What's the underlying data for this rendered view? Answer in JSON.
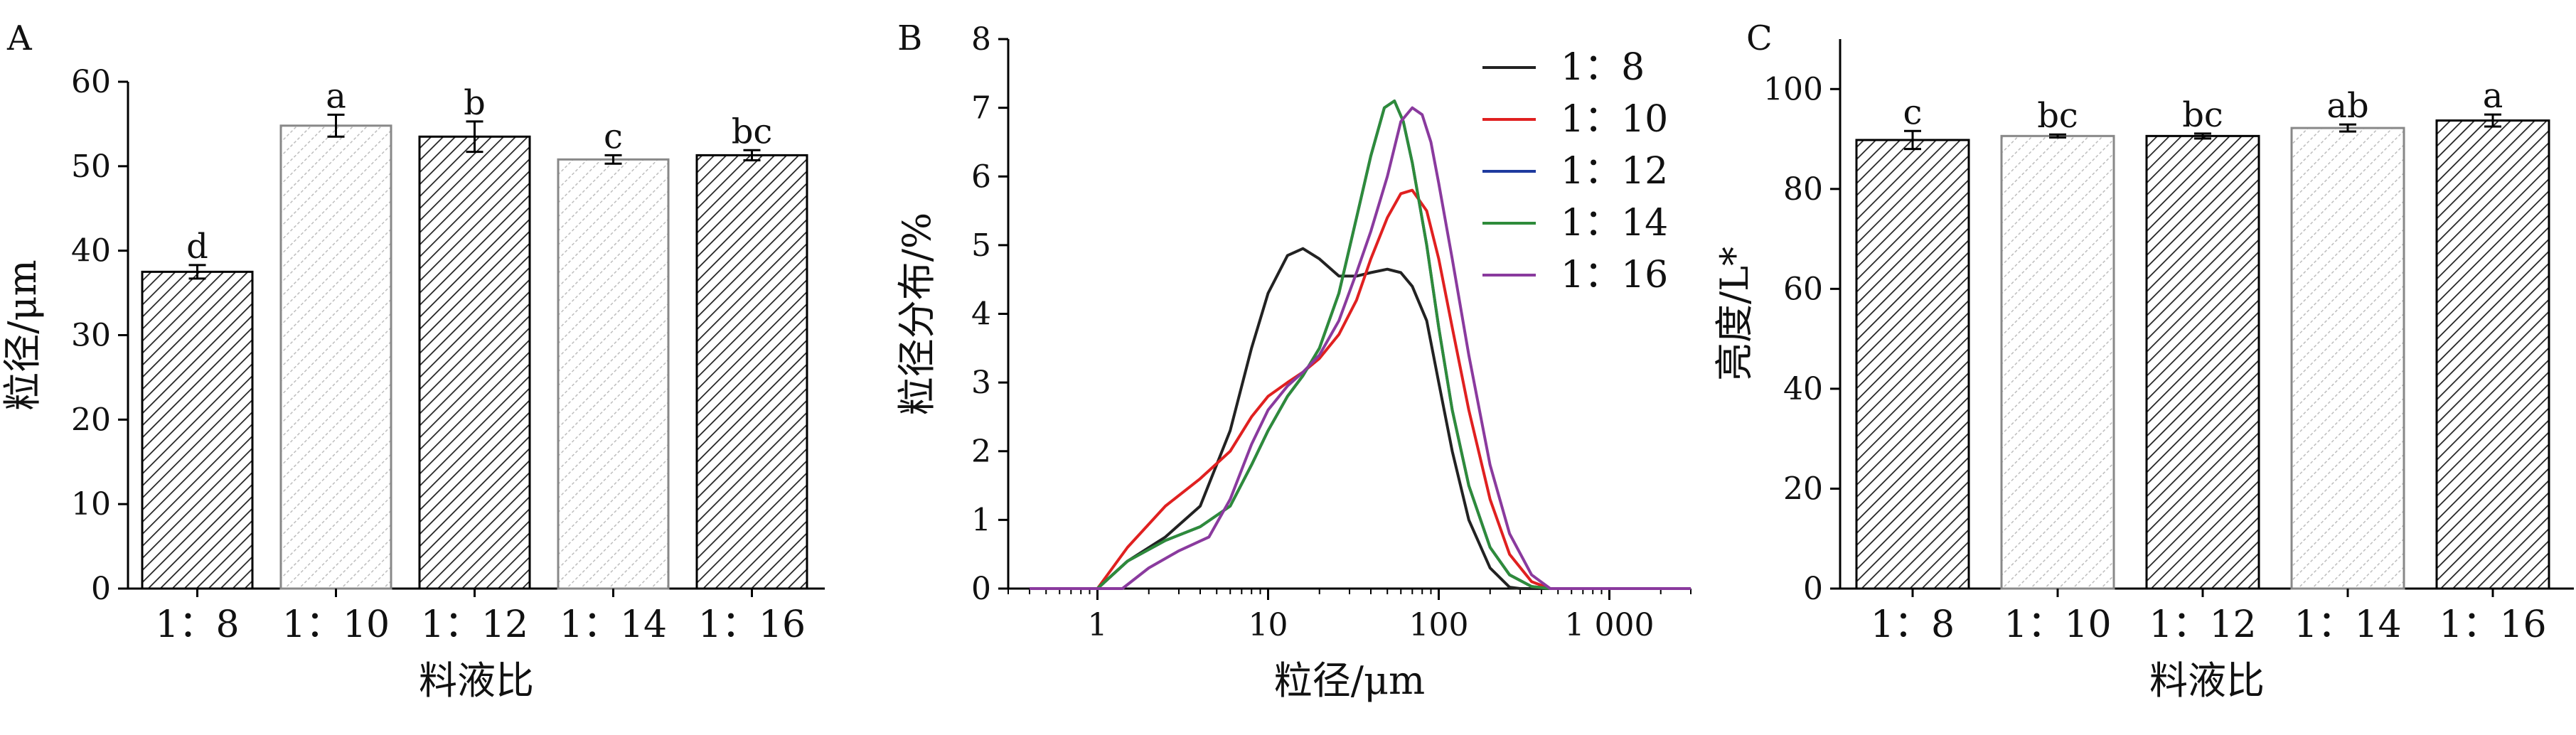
{
  "chart_data": [
    {
      "panel": "A",
      "type": "bar",
      "categories": [
        "1：8",
        "1：10",
        "1：12",
        "1：14",
        "1：16"
      ],
      "values": [
        37.5,
        54.8,
        53.5,
        50.8,
        51.3
      ],
      "errors": [
        0.8,
        1.3,
        1.8,
        0.5,
        0.6
      ],
      "labels": [
        "d",
        "a",
        "b",
        "c",
        "bc"
      ],
      "xlabel": "料液比",
      "ylabel": "粒径/μm",
      "ylim": [
        0,
        60
      ],
      "yticks": [
        "0",
        "10",
        "20",
        "30",
        "40",
        "50",
        "60"
      ],
      "grid": false,
      "legend": "none"
    },
    {
      "panel": "B",
      "type": "line",
      "xscale": "log",
      "xlabel": "粒径/μm",
      "ylabel": "粒径分布/%",
      "xlim": [
        0.3,
        3000
      ],
      "ylim": [
        0,
        8
      ],
      "xticks": [
        "1",
        "10",
        "100",
        "1 000"
      ],
      "yticks": [
        "0",
        "1",
        "2",
        "3",
        "4",
        "5",
        "6",
        "7",
        "8"
      ],
      "legend": "top-right",
      "series": [
        {
          "name": "1：8",
          "color": "#222222",
          "x": [
            0.4,
            1.0,
            1.5,
            2.5,
            4,
            6,
            8,
            10,
            13,
            16,
            20,
            26,
            33,
            40,
            50,
            60,
            70,
            85,
            100,
            120,
            150,
            200,
            260,
            300,
            1000,
            3000
          ],
          "y": [
            0,
            0,
            0.4,
            0.75,
            1.2,
            2.3,
            3.5,
            4.3,
            4.85,
            4.95,
            4.8,
            4.55,
            4.55,
            4.6,
            4.65,
            4.6,
            4.4,
            3.9,
            3.0,
            2.0,
            1.0,
            0.3,
            0.02,
            0,
            0,
            0
          ]
        },
        {
          "name": "1：10",
          "color": "#e02020",
          "x": [
            0.4,
            1.0,
            1.5,
            2.5,
            4,
            6,
            8,
            10,
            13,
            16,
            20,
            26,
            33,
            40,
            50,
            60,
            70,
            85,
            100,
            120,
            150,
            200,
            260,
            350,
            450,
            1000,
            3000
          ],
          "y": [
            0,
            0,
            0.6,
            1.2,
            1.6,
            2.0,
            2.5,
            2.8,
            3.0,
            3.15,
            3.35,
            3.7,
            4.2,
            4.8,
            5.4,
            5.75,
            5.8,
            5.5,
            4.8,
            3.8,
            2.6,
            1.3,
            0.5,
            0.1,
            0,
            0,
            0
          ]
        },
        {
          "name": "1：12",
          "color": "#1e3a9e",
          "x": [
            0.4,
            1.0,
            1.5,
            2.5,
            4,
            6,
            8,
            10,
            13,
            16,
            20,
            26,
            33,
            40,
            48,
            55,
            62,
            70,
            85,
            100,
            120,
            150,
            200,
            260,
            350,
            450,
            1000,
            3000
          ],
          "y": [
            0,
            0,
            0.4,
            0.7,
            0.9,
            1.2,
            1.8,
            2.3,
            2.8,
            3.1,
            3.5,
            4.3,
            5.4,
            6.3,
            7.0,
            7.1,
            6.8,
            6.2,
            5.0,
            3.8,
            2.6,
            1.5,
            0.6,
            0.2,
            0.03,
            0,
            0,
            0
          ]
        },
        {
          "name": "1：14",
          "color": "#2e8b3a",
          "x": [
            0.4,
            1.0,
            1.5,
            2.5,
            4,
            6,
            8,
            10,
            13,
            16,
            20,
            26,
            33,
            40,
            48,
            55,
            62,
            70,
            85,
            100,
            120,
            150,
            200,
            260,
            350,
            450,
            1000,
            3000
          ],
          "y": [
            0,
            0,
            0.4,
            0.7,
            0.9,
            1.2,
            1.8,
            2.3,
            2.8,
            3.1,
            3.5,
            4.3,
            5.4,
            6.3,
            7.0,
            7.1,
            6.8,
            6.2,
            5.0,
            3.8,
            2.6,
            1.5,
            0.6,
            0.2,
            0.03,
            0,
            0,
            0
          ]
        },
        {
          "name": "1：16",
          "color": "#8a3a9e",
          "x": [
            0.4,
            1.4,
            2.0,
            3.0,
            4.5,
            6,
            8,
            10,
            13,
            16,
            20,
            26,
            33,
            40,
            50,
            60,
            70,
            80,
            90,
            100,
            120,
            150,
            200,
            260,
            350,
            450,
            1000,
            3000
          ],
          "y": [
            0,
            0,
            0.3,
            0.55,
            0.75,
            1.3,
            2.1,
            2.6,
            2.95,
            3.15,
            3.4,
            3.9,
            4.6,
            5.2,
            6.0,
            6.8,
            7.0,
            6.9,
            6.5,
            5.9,
            4.8,
            3.4,
            1.8,
            0.8,
            0.2,
            0,
            0,
            0
          ]
        }
      ]
    },
    {
      "panel": "C",
      "type": "bar",
      "categories": [
        "1：8",
        "1：10",
        "1：12",
        "1：14",
        "1：16"
      ],
      "values": [
        89.8,
        90.6,
        90.6,
        92.2,
        93.7
      ],
      "errors": [
        1.8,
        0.3,
        0.5,
        0.7,
        1.2
      ],
      "labels": [
        "c",
        "bc",
        "bc",
        "ab",
        "a"
      ],
      "xlabel": "料液比",
      "ylabel": "亮度/L*",
      "ylim": [
        0,
        110
      ],
      "yticks": [
        "0",
        "20",
        "40",
        "60",
        "80",
        "100"
      ],
      "grid": false,
      "legend": "none"
    }
  ]
}
